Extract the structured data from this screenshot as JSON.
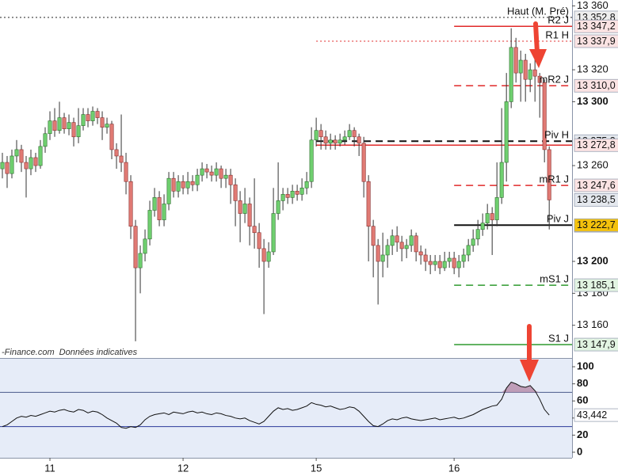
{
  "chart_data": [
    {
      "type": "candlestick",
      "watermark": "-Finance.com",
      "note": "Données indicatives",
      "up_color": "#6fcf6f",
      "down_color": "#e07a74",
      "xlim": [
        -0.5,
        119.8
      ],
      "xticks": [
        {
          "value": 10,
          "label": "11"
        },
        {
          "value": 38,
          "label": "12"
        },
        {
          "value": 66,
          "label": "15"
        },
        {
          "value": 95,
          "label": "16"
        }
      ],
      "ylim": [
        13139.5,
        13363.7
      ],
      "yticks": [
        {
          "value": 13160,
          "label": "13 160"
        },
        {
          "value": 13180,
          "label": "13 180"
        },
        {
          "value": 13200,
          "label": "13 200"
        },
        {
          "value": 13260,
          "label": "13 260"
        },
        {
          "value": 13300,
          "label": "13 300"
        },
        {
          "value": 13320,
          "label": "13 320"
        },
        {
          "value": 13360,
          "label": "13 360"
        }
      ],
      "open": [
        13258,
        13262,
        13255,
        13266,
        13270,
        13262,
        13258,
        13265,
        13260,
        13272,
        13280,
        13288,
        13282,
        13290,
        13283,
        13287,
        13278,
        13285,
        13292,
        13288,
        13294,
        13290,
        13284,
        13286,
        13270,
        13266,
        13262,
        13250,
        13222,
        13196,
        13205,
        13214,
        13232,
        13240,
        13226,
        13236,
        13252,
        13244,
        13250,
        13246,
        13250,
        13248,
        13254,
        13258,
        13256,
        13254,
        13258,
        13252,
        13254,
        13248,
        13238,
        13230,
        13236,
        13222,
        13218,
        13208,
        13200,
        13206,
        13230,
        13238,
        13242,
        13240,
        13244,
        13242,
        13246,
        13250,
        13276,
        13282,
        13278,
        13274,
        13276,
        13274,
        13276,
        13278,
        13282,
        13278,
        13274,
        13250,
        13222,
        13210,
        13200,
        13204,
        13210,
        13216,
        13212,
        13208,
        13210,
        13216,
        13206,
        13204,
        13200,
        13198,
        13200,
        13196,
        13200,
        13202,
        13196,
        13200,
        13204,
        13210,
        13214,
        13220,
        13224,
        13230,
        13226,
        13240,
        13262,
        13300,
        13334,
        13318,
        13326,
        13314,
        13320,
        13316,
        13312,
        13270
      ],
      "high": [
        13268,
        13266,
        13270,
        13276,
        13273,
        13266,
        13270,
        13268,
        13276,
        13284,
        13294,
        13296,
        13300,
        13293,
        13292,
        13290,
        13296,
        13296,
        13296,
        13297,
        13296,
        13294,
        13290,
        13288,
        13274,
        13292,
        13268,
        13254,
        13226,
        13210,
        13220,
        13238,
        13246,
        13244,
        13242,
        13256,
        13256,
        13254,
        13254,
        13256,
        13254,
        13258,
        13262,
        13261,
        13260,
        13262,
        13260,
        13258,
        13258,
        13252,
        13244,
        13246,
        13240,
        13252,
        13224,
        13214,
        13212,
        13246,
        13262,
        13246,
        13246,
        13248,
        13248,
        13252,
        13256,
        13284,
        13290,
        13286,
        13282,
        13280,
        13279,
        13280,
        13282,
        13286,
        13284,
        13280,
        13278,
        13254,
        13226,
        13214,
        13218,
        13214,
        13220,
        13222,
        13216,
        13214,
        13220,
        13218,
        13210,
        13208,
        13204,
        13204,
        13204,
        13206,
        13206,
        13206,
        13204,
        13208,
        13214,
        13220,
        13226,
        13230,
        13236,
        13234,
        13262,
        13296,
        13318,
        13346,
        13340,
        13332,
        13330,
        13324,
        13328,
        13318,
        13314,
        13272
      ],
      "low": [
        13252,
        13246,
        13252,
        13262,
        13256,
        13240,
        13254,
        13256,
        13258,
        13268,
        13276,
        13278,
        13280,
        13280,
        13279,
        13272,
        13274,
        13282,
        13284,
        13285,
        13286,
        13276,
        13280,
        13264,
        13258,
        13256,
        13242,
        13214,
        13150,
        13180,
        13200,
        13210,
        13228,
        13222,
        13222,
        13232,
        13240,
        13240,
        13242,
        13242,
        13244,
        13244,
        13250,
        13252,
        13250,
        13250,
        13246,
        13246,
        13236,
        13222,
        13212,
        13224,
        13210,
        13208,
        13196,
        13167,
        13196,
        13204,
        13226,
        13232,
        13236,
        13236,
        13238,
        13238,
        13242,
        13246,
        13272,
        13270,
        13270,
        13270,
        13270,
        13272,
        13273,
        13276,
        13272,
        13266,
        13240,
        13200,
        13190,
        13173,
        13190,
        13196,
        13204,
        13206,
        13200,
        13202,
        13206,
        13200,
        13198,
        13194,
        13192,
        13194,
        13192,
        13194,
        13196,
        13192,
        13190,
        13196,
        13200,
        13206,
        13210,
        13216,
        13220,
        13204,
        13222,
        13236,
        13250,
        13296,
        13312,
        13300,
        13300,
        13306,
        13300,
        13290,
        13262,
        13220
      ],
      "close": [
        13262,
        13255,
        13266,
        13270,
        13262,
        13258,
        13265,
        13260,
        13272,
        13280,
        13288,
        13282,
        13290,
        13283,
        13287,
        13278,
        13285,
        13292,
        13288,
        13294,
        13290,
        13284,
        13286,
        13270,
        13266,
        13262,
        13250,
        13222,
        13196,
        13205,
        13214,
        13232,
        13240,
        13226,
        13236,
        13252,
        13244,
        13250,
        13246,
        13250,
        13248,
        13254,
        13258,
        13256,
        13254,
        13258,
        13252,
        13254,
        13248,
        13238,
        13230,
        13236,
        13222,
        13218,
        13208,
        13200,
        13206,
        13230,
        13238,
        13242,
        13240,
        13244,
        13242,
        13246,
        13250,
        13276,
        13282,
        13278,
        13274,
        13276,
        13274,
        13276,
        13278,
        13282,
        13278,
        13274,
        13250,
        13222,
        13210,
        13200,
        13204,
        13210,
        13216,
        13212,
        13208,
        13210,
        13216,
        13206,
        13204,
        13200,
        13198,
        13200,
        13196,
        13200,
        13202,
        13196,
        13200,
        13204,
        13210,
        13214,
        13220,
        13224,
        13230,
        13226,
        13240,
        13262,
        13300,
        13334,
        13318,
        13326,
        13314,
        13320,
        13316,
        13312,
        13270,
        13238.5
      ],
      "levels": [
        {
          "name": "Haut (M. Pré)",
          "value": 13352.8,
          "label": "13 352,8",
          "color": "#222222",
          "style": "dotted",
          "start_x": -0.5,
          "box_color": "#eeeeee"
        },
        {
          "name": "R2 J",
          "value": 13347.2,
          "label": "13 347,2",
          "color": "#e02a2a",
          "style": "solid",
          "start_x": 95,
          "box_color": "#fbe3e3"
        },
        {
          "name": "R1 H",
          "value": 13337.9,
          "label": "13 337,9",
          "color": "#e02a2a",
          "style": "dotted",
          "start_x": 66,
          "box_color": "#fbe3e3"
        },
        {
          "name": "mR2 J",
          "value": 13310.0,
          "label": "13 310,0",
          "color": "#e02a2a",
          "style": "dashed",
          "start_x": 95,
          "box_color": "#fbe3e3"
        },
        {
          "name": "Piv H",
          "value": 13275.3,
          "label": "13 275,3",
          "color": "#111111",
          "style": "dashed",
          "start_x": 66,
          "box_color": "#e4e8ee"
        },
        {
          "value": 13272.8,
          "label": "13 272,8",
          "color": "#e02a2a",
          "style": "solid",
          "start_x": 66,
          "box_color": "#fbe3e3"
        },
        {
          "name": "mR1 J",
          "value": 13247.6,
          "label": "13 247,6",
          "color": "#e02a2a",
          "style": "dashed",
          "start_x": 95,
          "box_color": "#fbe3e3"
        },
        {
          "name": "Piv J",
          "value": 13222.7,
          "label": "13 222,7",
          "color": "#111111",
          "style": "solid",
          "start_x": 95,
          "box_color": "#f4c20d"
        },
        {
          "name": "mS1 J",
          "value": 13185.1,
          "label": "13 185,1",
          "color": "#2e9a2e",
          "style": "dashed",
          "start_x": 95,
          "box_color": "#e2f4e2"
        },
        {
          "name": "S1 J",
          "value": 13147.9,
          "label": "13 147,9",
          "color": "#2e9a2e",
          "style": "solid",
          "start_x": 95,
          "box_color": "#e2f4e2"
        }
      ],
      "price_boxes": [
        {
          "value": 13238.5,
          "label": "13 238,5",
          "box_color": "#e4e8ee"
        },
        {
          "value": 13222.3,
          "label": "13 222,3",
          "box_color": "#e4e8ee"
        }
      ]
    },
    {
      "type": "line",
      "color": "#111111",
      "fill_color": "#b58aa8",
      "ylim": [
        -6.5,
        109.3
      ],
      "yticks": [
        0,
        20,
        40,
        60,
        80,
        100
      ],
      "levels": [
        70,
        30
      ],
      "level_colors": [
        "#4a5a8a",
        "#2a3a9a"
      ],
      "values": [
        30,
        32,
        36,
        40,
        42,
        41,
        43,
        42,
        44,
        46,
        48,
        47,
        49,
        50,
        48,
        47,
        50,
        49,
        46,
        48,
        47,
        44,
        40,
        37,
        34,
        29,
        28,
        30,
        29,
        32,
        38,
        42,
        44,
        45,
        46,
        44,
        47,
        46,
        45,
        47,
        48,
        46,
        47,
        45,
        44,
        46,
        45,
        43,
        42,
        40,
        39,
        40,
        37,
        35,
        33,
        36,
        42,
        48,
        52,
        50,
        51,
        49,
        50,
        52,
        54,
        58,
        56,
        55,
        53,
        54,
        52,
        50,
        51,
        53,
        52,
        48,
        42,
        36,
        31,
        30,
        33,
        37,
        39,
        38,
        40,
        41,
        39,
        38,
        37,
        38,
        39,
        40,
        38,
        39,
        40,
        41,
        39,
        40,
        42,
        44,
        47,
        50,
        52,
        54,
        55,
        62,
        75,
        82,
        80,
        77,
        76,
        78,
        72,
        62,
        50,
        43.442
      ],
      "last_label": "43,442"
    }
  ]
}
